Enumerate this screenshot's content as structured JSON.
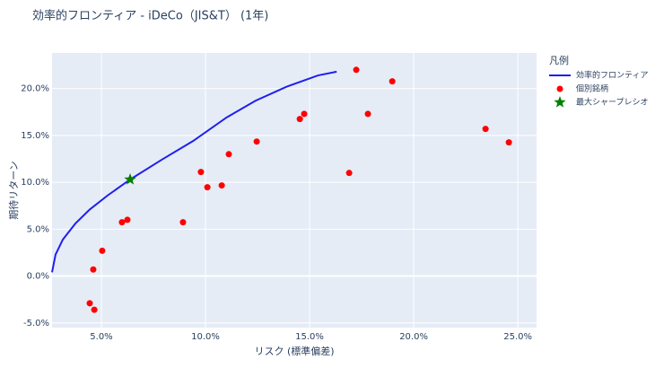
{
  "chart_data": {
    "type": "scatter",
    "title": "効率的フロンティア - iDeCo（JIS&T） (1年)",
    "x_label": "リスク (標準偏差)",
    "y_label": "期待リターン",
    "legend_title": "凡例",
    "xlim": [
      2.63,
      25.9
    ],
    "ylim": [
      -5.5,
      23.8
    ],
    "xticks": [
      {
        "value": 5,
        "label": "5.0%"
      },
      {
        "value": 10,
        "label": "10.0%"
      },
      {
        "value": 15,
        "label": "15.0%"
      },
      {
        "value": 20,
        "label": "20.0%"
      },
      {
        "value": 25,
        "label": "25.0%"
      }
    ],
    "yticks": [
      {
        "value": -5,
        "label": "-5.0%"
      },
      {
        "value": 0,
        "label": "0.0%"
      },
      {
        "value": 5,
        "label": "5.0%"
      },
      {
        "value": 10,
        "label": "10.0%"
      },
      {
        "value": 15,
        "label": "15.0%"
      },
      {
        "value": 20,
        "label": "20.0%"
      }
    ],
    "grid": true,
    "series": [
      {
        "name": "効率的フロンティア",
        "color": "#1f1fef",
        "mode": "lines",
        "x": [
          2.63,
          2.8,
          3.15,
          3.75,
          4.44,
          5.3,
          6.38,
          7.89,
          9.4,
          11.0,
          12.4,
          13.9,
          15.4,
          16.3
        ],
        "values": [
          0.4,
          2.3,
          3.9,
          5.6,
          7.1,
          8.6,
          10.3,
          12.4,
          14.4,
          16.9,
          18.7,
          20.2,
          21.4,
          21.8
        ]
      },
      {
        "name": "個別銘柄",
        "color": "#ff0000",
        "mode": "markers",
        "x": [
          17.24,
          18.97,
          23.45,
          24.57,
          17.8,
          14.74,
          14.53,
          12.46,
          16.9,
          11.12,
          9.78,
          10.09,
          10.78,
          6.25,
          5.99,
          8.92,
          5.04,
          4.61,
          4.44,
          4.66
        ],
        "values": [
          22.0,
          20.77,
          15.7,
          14.26,
          17.3,
          17.3,
          16.75,
          14.35,
          11.0,
          13.0,
          11.1,
          9.47,
          9.67,
          6.0,
          5.74,
          5.74,
          2.7,
          0.7,
          -2.9,
          -3.6
        ]
      },
      {
        "name": "最大シャープレシオ",
        "color": "#008000",
        "mode": "markers",
        "symbol": "star",
        "x": [
          6.38
        ],
        "values": [
          10.3
        ]
      }
    ]
  }
}
